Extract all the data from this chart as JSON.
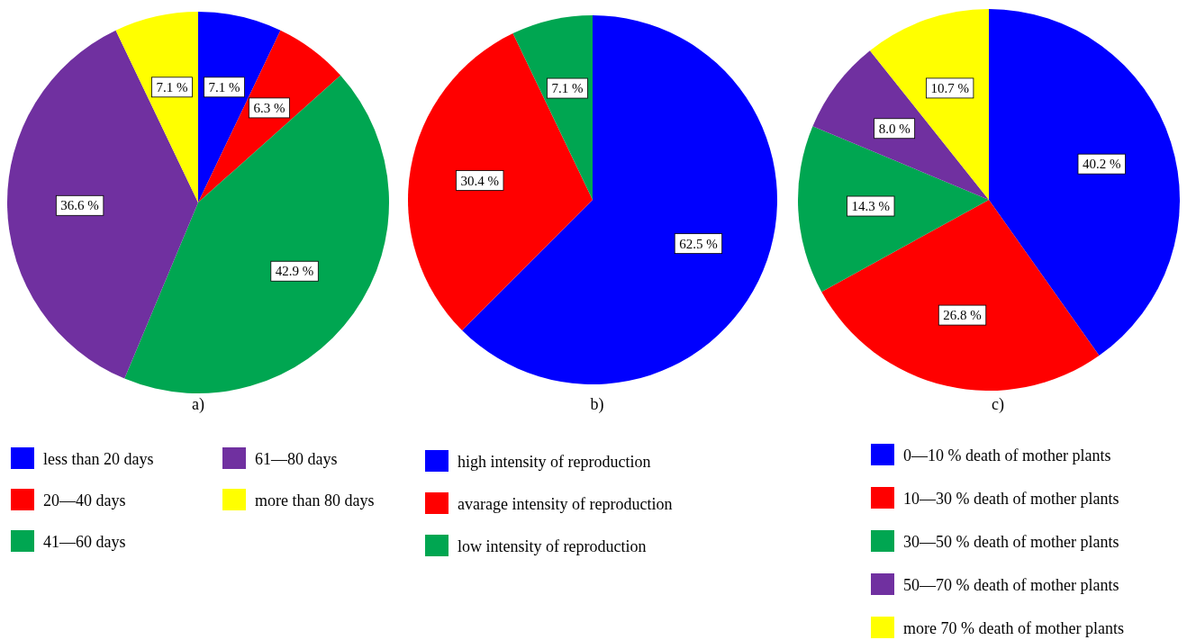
{
  "chart_data": [
    {
      "type": "pie",
      "title": "a)",
      "categories": [
        "less than 20 days",
        "20—40 days",
        "41—60 days",
        "61—80 days",
        "more than 80 days"
      ],
      "values": [
        7.1,
        6.3,
        42.9,
        36.6,
        7.1
      ],
      "value_labels": [
        "7.1 %",
        "6.3 %",
        "42.9 %",
        "36.6 %",
        "7.1 %"
      ],
      "colors": [
        "#0000ff",
        "#ff0000",
        "#00a651",
        "#7030a0",
        "#ffff00"
      ],
      "legend": "bottom"
    },
    {
      "type": "pie",
      "title": "b)",
      "categories": [
        "high intensity of reproduction",
        "avarage intensity of reproduction",
        "low intensity of reproduction"
      ],
      "values": [
        62.5,
        30.4,
        7.1
      ],
      "value_labels": [
        "62.5 %",
        "30.4 %",
        "7.1 %"
      ],
      "colors": [
        "#0000ff",
        "#ff0000",
        "#00a651"
      ],
      "legend": "bottom"
    },
    {
      "type": "pie",
      "title": "c)",
      "categories": [
        "0—10 % death of mother plants",
        "10—30 % death of mother plants",
        "30—50 % death of mother plants",
        "50—70 % death of mother plants",
        "more 70 % death of mother plants"
      ],
      "values": [
        40.2,
        26.8,
        14.3,
        8.0,
        10.7
      ],
      "value_labels": [
        "40.2 %",
        "26.8 %",
        "14.3 %",
        "8.0 %",
        "10.7 %"
      ],
      "colors": [
        "#0000ff",
        "#ff0000",
        "#00a651",
        "#7030a0",
        "#ffff00"
      ],
      "legend": "bottom"
    }
  ]
}
